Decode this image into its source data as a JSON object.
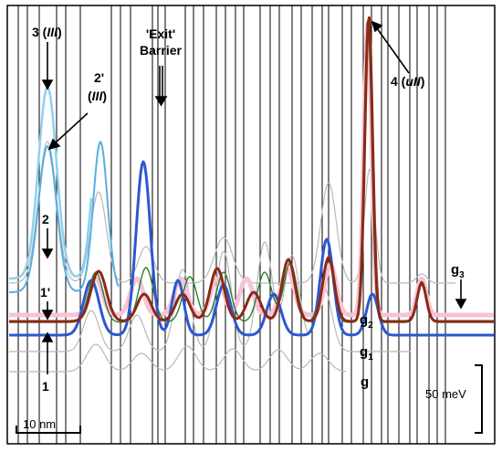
{
  "labels": {
    "l3": "3",
    "l3_sub": "III",
    "l2p": "2'",
    "l2p_sub": "III",
    "l2": "2",
    "l1p": "1'",
    "l1": "1",
    "exit_q1": "'Exit'",
    "exit_q2": "Barrier",
    "l4": "4",
    "l4_sub": "uII",
    "g3": "g",
    "g3_sub": "3",
    "g2": "g",
    "g2_sub": "2",
    "g1": "g",
    "g1_sub": "1",
    "g": "g",
    "energy_scale": "50 meV",
    "length_scale": "10 nm"
  },
  "colors": {
    "light_blue": "#8fd0ea",
    "medium_blue": "#5aaee0",
    "dark_blue": "#2c58d0",
    "brown": "#8b2a14",
    "green": "#2e7d32",
    "pink": "#f7c3d6",
    "gray": "#b8b8b8",
    "barrier_line": "#000000"
  }
}
